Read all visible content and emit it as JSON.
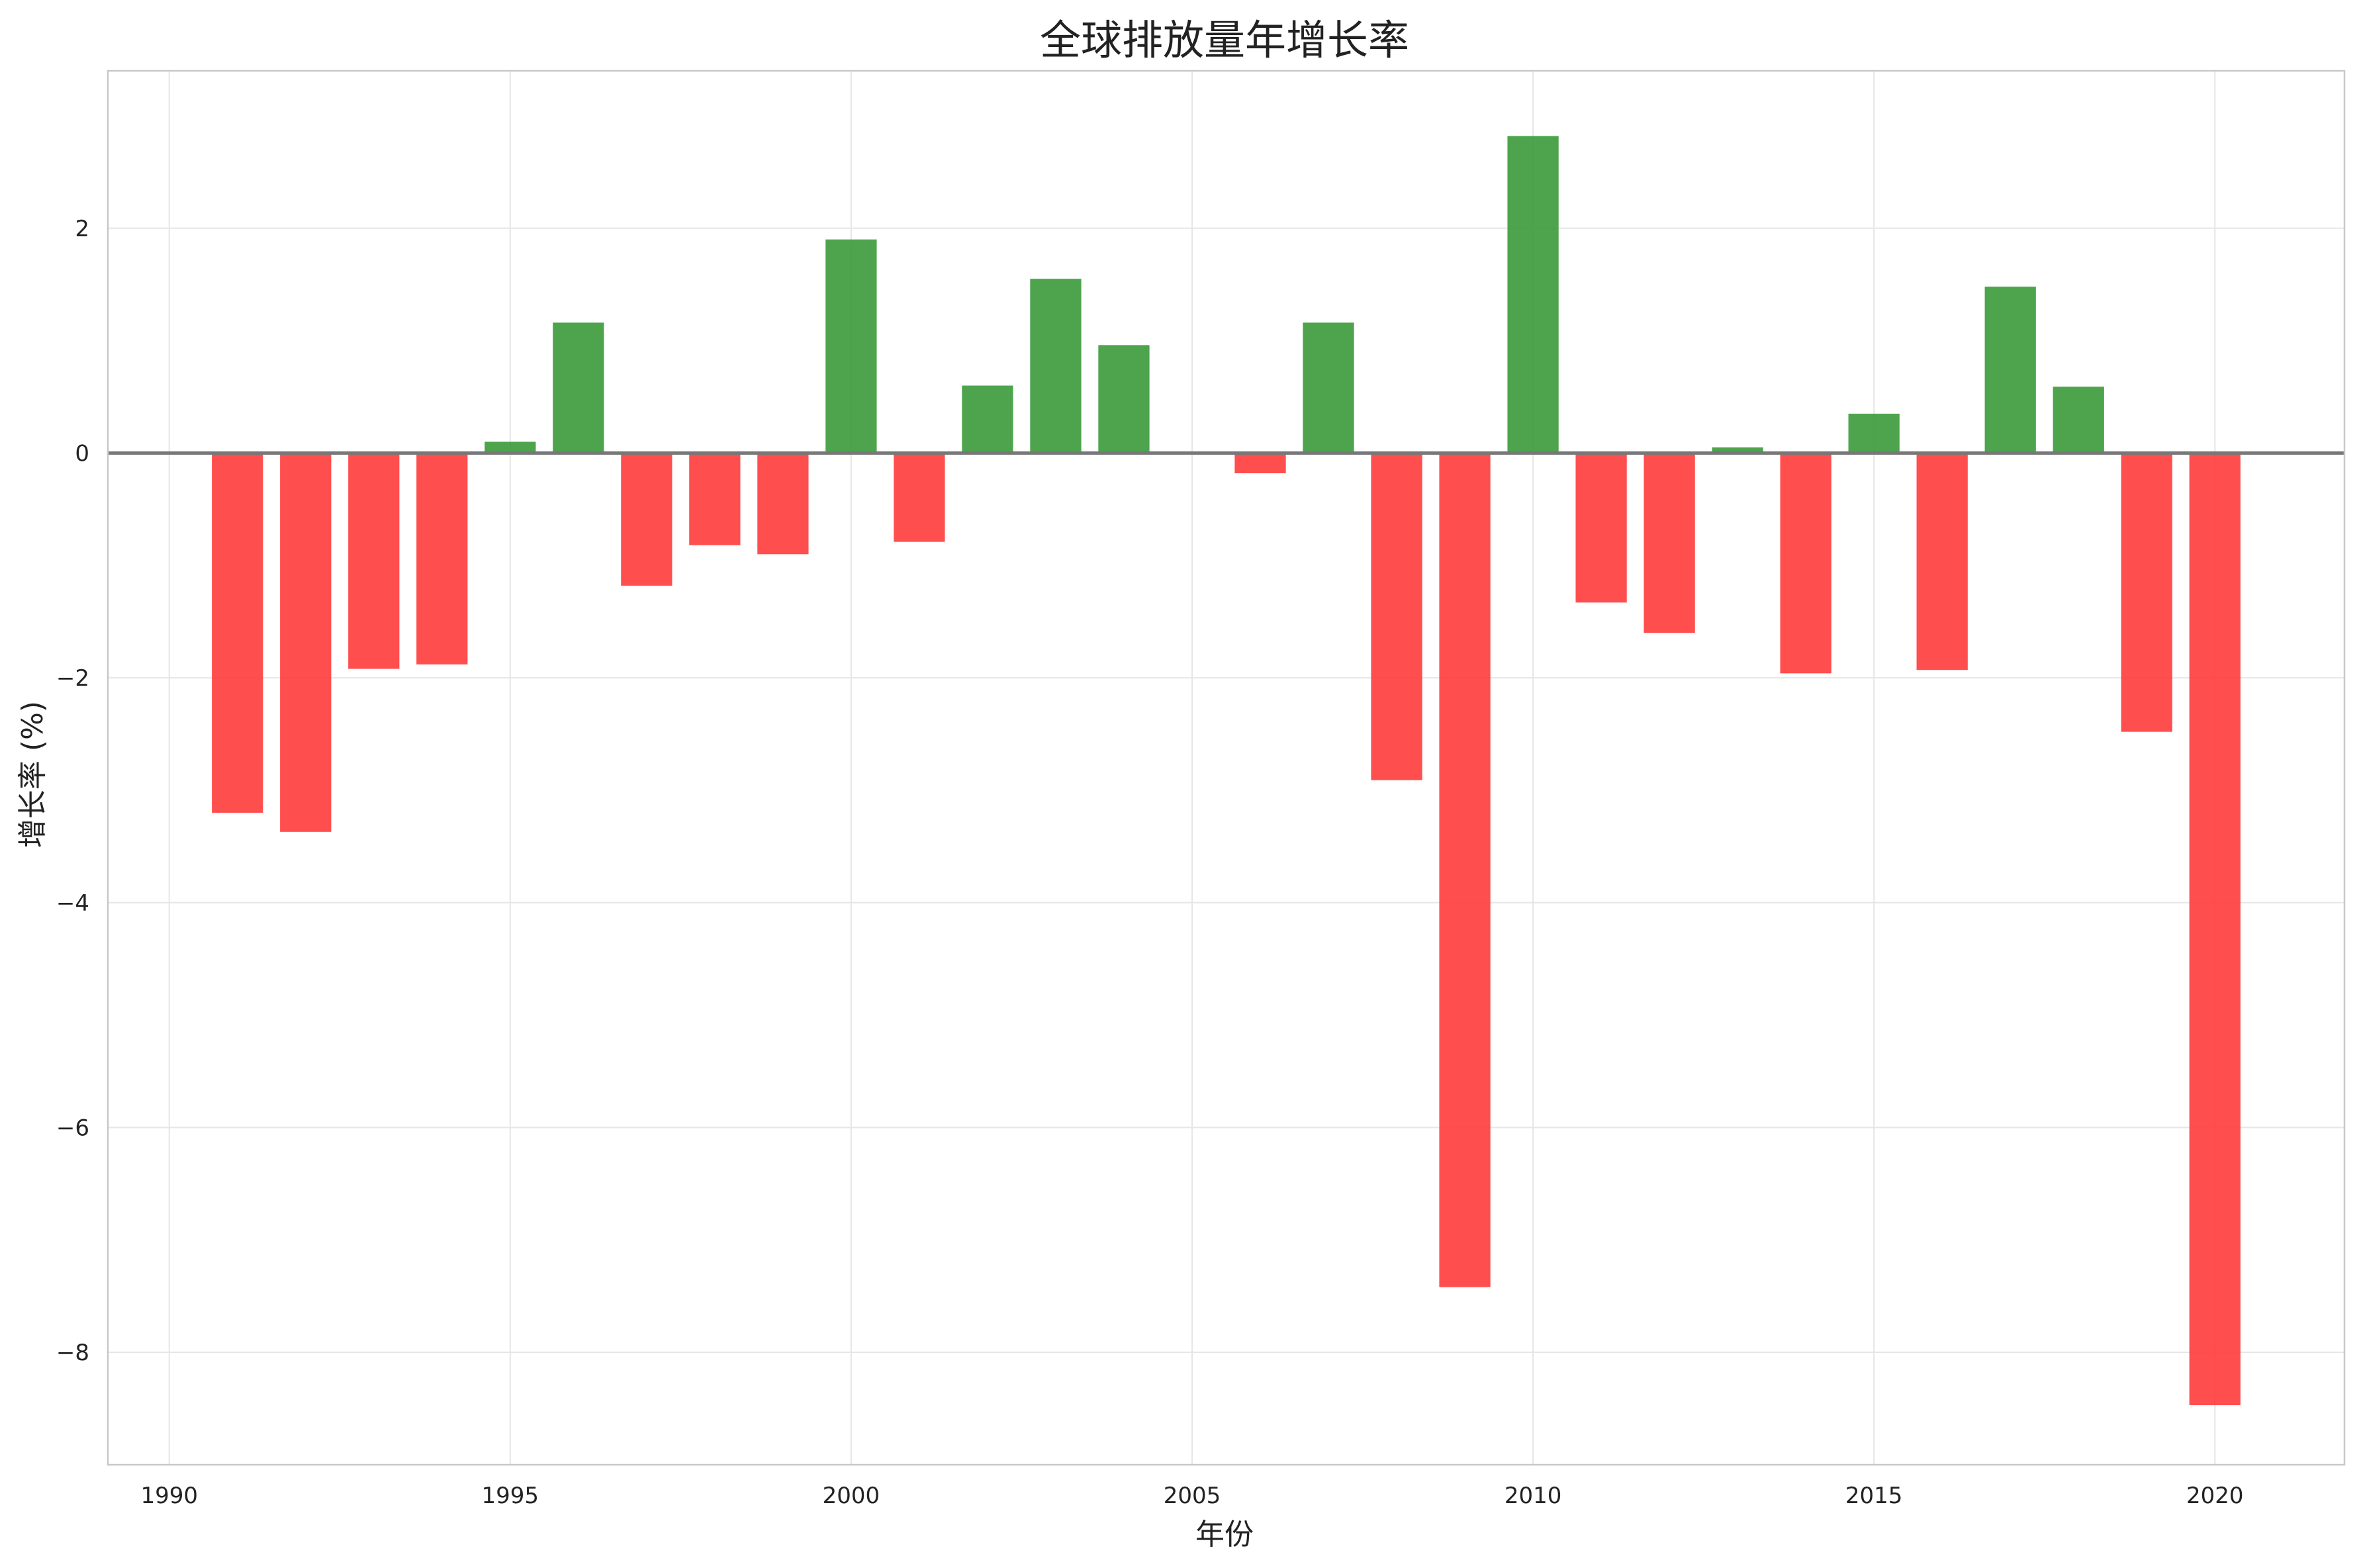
{
  "chart_data": {
    "type": "bar",
    "title": "全球排放量年增长率",
    "xlabel": "年份",
    "ylabel": "增长率 (%)",
    "xlim": [
      1989.1,
      2021.9
    ],
    "ylim": [
      -9.0,
      3.4
    ],
    "x_ticks": [
      1990,
      1995,
      2000,
      2005,
      2010,
      2015,
      2020
    ],
    "y_ticks": [
      -8,
      -6,
      -4,
      -2,
      0,
      2
    ],
    "y_tick_labels": [
      "−8",
      "−6",
      "−4",
      "−2",
      "0",
      "2"
    ],
    "grid": true,
    "zero_line": true,
    "colors": {
      "positive": "#3a9a3a",
      "negative": "#ff3b3b",
      "grid": "#e6e6e6",
      "axis": "#c8c8c8",
      "zero_line": "#777777"
    },
    "x": [
      1991,
      1992,
      1993,
      1994,
      1995,
      1996,
      1997,
      1998,
      1999,
      2000,
      2001,
      2002,
      2003,
      2004,
      2005,
      2006,
      2007,
      2008,
      2009,
      2010,
      2011,
      2012,
      2013,
      2014,
      2015,
      2016,
      2017,
      2018,
      2019,
      2020
    ],
    "values": [
      -3.2,
      -3.37,
      -1.92,
      -1.88,
      0.1,
      1.16,
      -1.18,
      -0.82,
      -0.9,
      1.9,
      -0.79,
      0.6,
      1.55,
      0.96,
      0.0,
      -0.18,
      1.16,
      -2.91,
      -7.42,
      2.82,
      -1.33,
      -1.6,
      0.05,
      -1.96,
      0.35,
      -1.93,
      1.48,
      0.59,
      -2.48,
      -8.47
    ]
  }
}
